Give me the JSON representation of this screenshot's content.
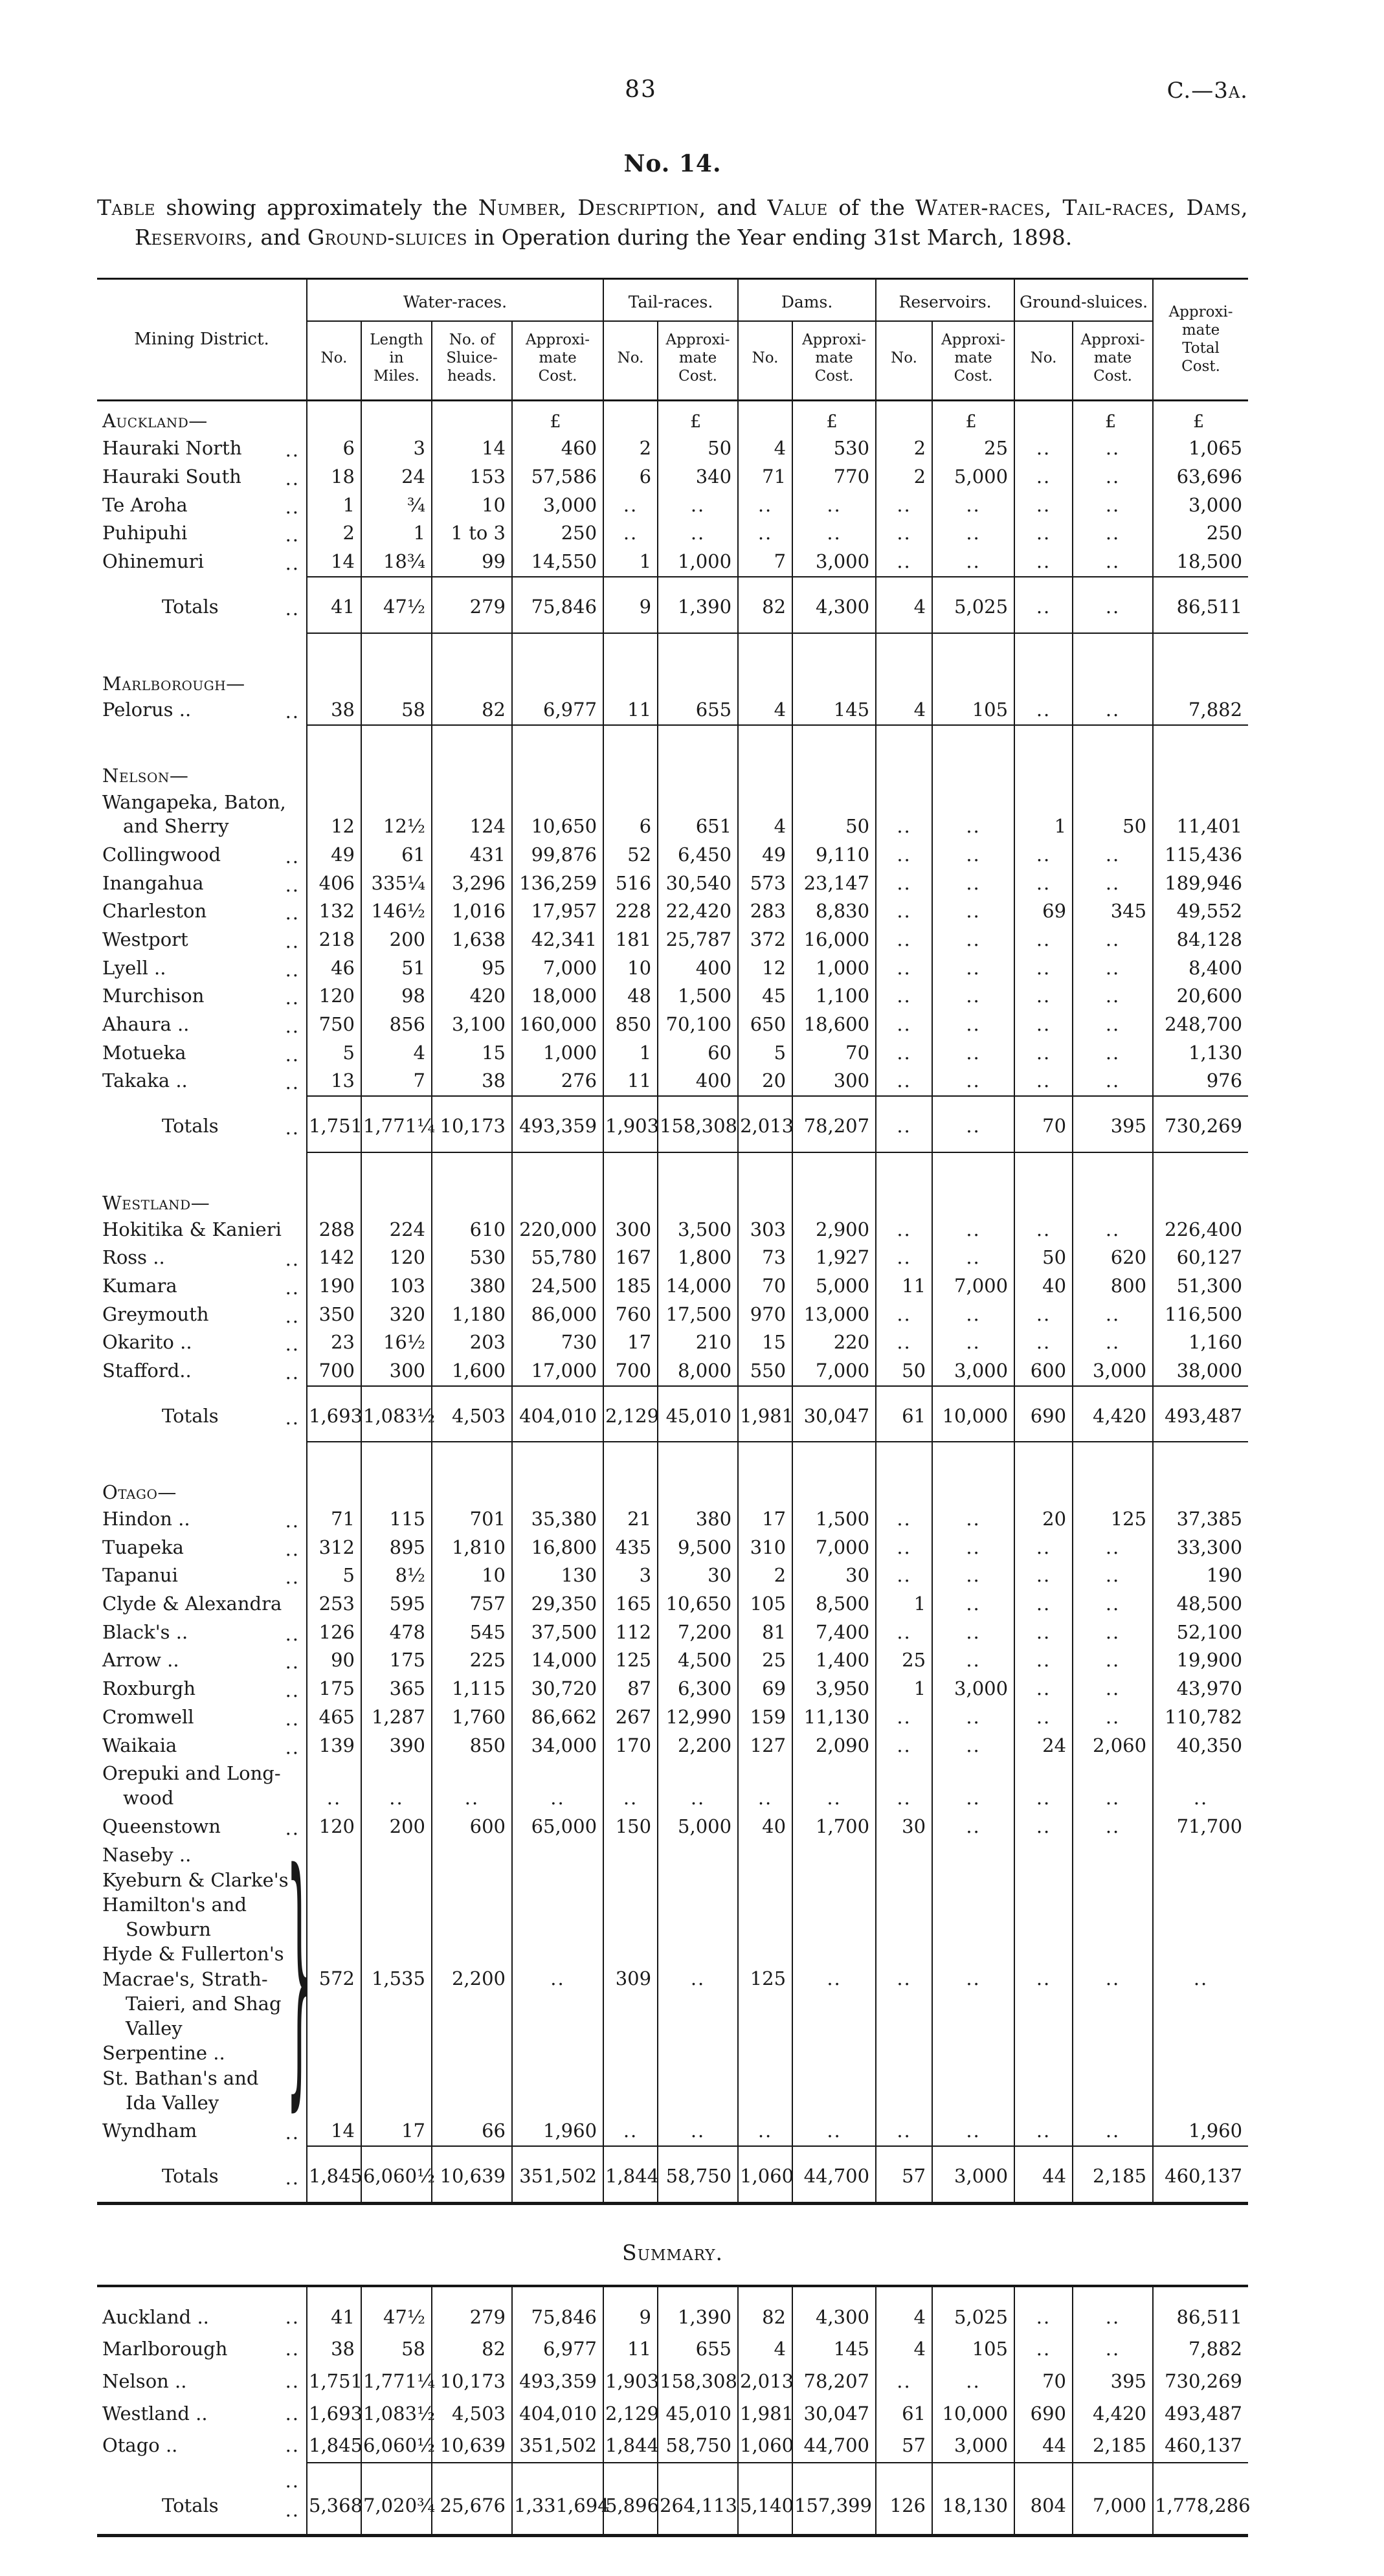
{
  "page": {
    "number": "83",
    "code": "C.—3a."
  },
  "heading": {
    "no": "No. 14."
  },
  "caption": {
    "p1": "Table",
    "p2": " showing approximately the ",
    "p3": "Number, Description,",
    "p4": " and ",
    "p5": "Value",
    "p6": " of the ",
    "p7": "Water-races, Tail-races, Dams, Reservoirs,",
    "p8": " and ",
    "p9": "Ground-sluices",
    "p10": " in Operation during the Year ending 31st March, 1898."
  },
  "table": {
    "pound": "£",
    "head": {
      "district": "Mining District.",
      "groups": [
        "Water-races.",
        "Tail-races.",
        "Dams.",
        "Reservoirs.",
        "Ground-sluices."
      ],
      "subs": [
        "No.",
        "Length\nin\nMiles.",
        "No. of\nSluice-\nheads.",
        "Approxi-\nmate\nCost.",
        "No.",
        "Approxi-\nmate\nCost.",
        "No.",
        "Approxi-\nmate\nCost.",
        "No.",
        "Approxi-\nmate\nCost.",
        "No.",
        "Approxi-\nmate\nCost."
      ],
      "total": "Approxi-\nmate\nTotal\nCost."
    },
    "sections": [
      {
        "name": "Auckland—",
        "pound": true,
        "rows": [
          {
            "d": "Hauraki North",
            "ld": "..",
            "v": [
              "6",
              "3",
              "14",
              "460",
              "2",
              "50",
              "4",
              "530",
              "2",
              "25",
              "..",
              "..",
              "1,065"
            ]
          },
          {
            "d": "Hauraki South",
            "ld": "..",
            "v": [
              "18",
              "24",
              "153",
              "57,586",
              "6",
              "340",
              "71",
              "770",
              "2",
              "5,000",
              "..",
              "..",
              "63,696"
            ]
          },
          {
            "d": "Te Aroha",
            "ld": "..",
            "v": [
              "1",
              "¾",
              "10",
              "3,000",
              "..",
              "..",
              "..",
              "..",
              "..",
              "..",
              "..",
              "..",
              "3,000"
            ]
          },
          {
            "d": "Puhipuhi",
            "ld": "..",
            "v": [
              "2",
              "1",
              "1 to 3",
              "250",
              "..",
              "..",
              "..",
              "..",
              "..",
              "..",
              "..",
              "..",
              "250"
            ]
          },
          {
            "d": "Ohinemuri",
            "ld": "..",
            "v": [
              "14",
              "18¾",
              "99",
              "14,550",
              "1",
              "1,000",
              "7",
              "3,000",
              "..",
              "..",
              "..",
              "..",
              "18,500"
            ]
          }
        ],
        "totals": {
          "label": "Totals",
          "ld": "..",
          "v": [
            "41",
            "47½",
            "279",
            "75,846",
            "9",
            "1,390",
            "82",
            "4,300",
            "4",
            "5,025",
            "..",
            "..",
            "86,511"
          ]
        }
      },
      {
        "name": "Marlborough—",
        "rows": [
          {
            "d": "Pelorus ..",
            "ld": "..",
            "v": [
              "38",
              "58",
              "82",
              "6,977",
              "11",
              "655",
              "4",
              "145",
              "4",
              "105",
              "..",
              "..",
              "7,882"
            ]
          }
        ]
      },
      {
        "name": "Nelson—",
        "rows": [
          {
            "d": "Wangapeka, Baton,\nand Sherry",
            "ld": "",
            "v": [
              "12",
              "12½",
              "124",
              "10,650",
              "6",
              "651",
              "4",
              "50",
              "..",
              "..",
              "1",
              "50",
              "11,401"
            ]
          },
          {
            "d": "Collingwood",
            "ld": "..",
            "v": [
              "49",
              "61",
              "431",
              "99,876",
              "52",
              "6,450",
              "49",
              "9,110",
              "..",
              "..",
              "..",
              "..",
              "115,436"
            ]
          },
          {
            "d": "Inangahua",
            "ld": "..",
            "v": [
              "406",
              "335¼",
              "3,296",
              "136,259",
              "516",
              "30,540",
              "573",
              "23,147",
              "..",
              "..",
              "..",
              "..",
              "189,946"
            ]
          },
          {
            "d": "Charleston",
            "ld": "..",
            "v": [
              "132",
              "146½",
              "1,016",
              "17,957",
              "228",
              "22,420",
              "283",
              "8,830",
              "..",
              "..",
              "69",
              "345",
              "49,552"
            ]
          },
          {
            "d": "Westport",
            "ld": "..",
            "v": [
              "218",
              "200",
              "1,638",
              "42,341",
              "181",
              "25,787",
              "372",
              "16,000",
              "..",
              "..",
              "..",
              "..",
              "84,128"
            ]
          },
          {
            "d": "Lyell ..",
            "ld": "..",
            "v": [
              "46",
              "51",
              "95",
              "7,000",
              "10",
              "400",
              "12",
              "1,000",
              "..",
              "..",
              "..",
              "..",
              "8,400"
            ]
          },
          {
            "d": "Murchison",
            "ld": "..",
            "v": [
              "120",
              "98",
              "420",
              "18,000",
              "48",
              "1,500",
              "45",
              "1,100",
              "..",
              "..",
              "..",
              "..",
              "20,600"
            ]
          },
          {
            "d": "Ahaura ..",
            "ld": "..",
            "v": [
              "750",
              "856",
              "3,100",
              "160,000",
              "850",
              "70,100",
              "650",
              "18,600",
              "..",
              "..",
              "..",
              "..",
              "248,700"
            ]
          },
          {
            "d": "Motueka",
            "ld": "..",
            "v": [
              "5",
              "4",
              "15",
              "1,000",
              "1",
              "60",
              "5",
              "70",
              "..",
              "..",
              "..",
              "..",
              "1,130"
            ]
          },
          {
            "d": "Takaka ..",
            "ld": "..",
            "v": [
              "13",
              "7",
              "38",
              "276",
              "11",
              "400",
              "20",
              "300",
              "..",
              "..",
              "..",
              "..",
              "976"
            ]
          }
        ],
        "totals": {
          "label": "Totals",
          "ld": "..",
          "v": [
            "1,751",
            "1,771¼",
            "10,173",
            "493,359",
            "1,903",
            "158,308",
            "2,013",
            "78,207",
            "..",
            "..",
            "70",
            "395",
            "730,269"
          ]
        }
      },
      {
        "name": "Westland—",
        "rows": [
          {
            "d": "Hokitika & Kanieri",
            "ld": "",
            "v": [
              "288",
              "224",
              "610",
              "220,000",
              "300",
              "3,500",
              "303",
              "2,900",
              "..",
              "..",
              "..",
              "..",
              "226,400"
            ]
          },
          {
            "d": "Ross ..",
            "ld": "..",
            "v": [
              "142",
              "120",
              "530",
              "55,780",
              "167",
              "1,800",
              "73",
              "1,927",
              "..",
              "..",
              "50",
              "620",
              "60,127"
            ]
          },
          {
            "d": "Kumara",
            "ld": "..",
            "v": [
              "190",
              "103",
              "380",
              "24,500",
              "185",
              "14,000",
              "70",
              "5,000",
              "11",
              "7,000",
              "40",
              "800",
              "51,300"
            ]
          },
          {
            "d": "Greymouth",
            "ld": "..",
            "v": [
              "350",
              "320",
              "1,180",
              "86,000",
              "760",
              "17,500",
              "970",
              "13,000",
              "..",
              "..",
              "..",
              "..",
              "116,500"
            ]
          },
          {
            "d": "Okarito ..",
            "ld": "..",
            "v": [
              "23",
              "16½",
              "203",
              "730",
              "17",
              "210",
              "15",
              "220",
              "..",
              "..",
              "..",
              "..",
              "1,160"
            ]
          },
          {
            "d": "Stafford..",
            "ld": "..",
            "v": [
              "700",
              "300",
              "1,600",
              "17,000",
              "700",
              "8,000",
              "550",
              "7,000",
              "50",
              "3,000",
              "600",
              "3,000",
              "38,000"
            ]
          }
        ],
        "totals": {
          "label": "Totals",
          "ld": "..",
          "v": [
            "1,693",
            "1,083½",
            "4,503",
            "404,010",
            "2,129",
            "45,010",
            "1,981",
            "30,047",
            "61",
            "10,000",
            "690",
            "4,420",
            "493,487"
          ]
        }
      },
      {
        "name": "Otago—",
        "rows": [
          {
            "d": "Hindon ..",
            "ld": "..",
            "v": [
              "71",
              "115",
              "701",
              "35,380",
              "21",
              "380",
              "17",
              "1,500",
              "..",
              "..",
              "20",
              "125",
              "37,385"
            ]
          },
          {
            "d": "Tuapeka",
            "ld": "..",
            "v": [
              "312",
              "895",
              "1,810",
              "16,800",
              "435",
              "9,500",
              "310",
              "7,000",
              "..",
              "..",
              "..",
              "..",
              "33,300"
            ]
          },
          {
            "d": "Tapanui",
            "ld": "..",
            "v": [
              "5",
              "8½",
              "10",
              "130",
              "3",
              "30",
              "2",
              "30",
              "..",
              "..",
              "..",
              "..",
              "190"
            ]
          },
          {
            "d": "Clyde & Alexandra",
            "ld": "",
            "v": [
              "253",
              "595",
              "757",
              "29,350",
              "165",
              "10,650",
              "105",
              "8,500",
              "1",
              "..",
              "..",
              "..",
              "48,500"
            ]
          },
          {
            "d": "Black's ..",
            "ld": "..",
            "v": [
              "126",
              "478",
              "545",
              "37,500",
              "112",
              "7,200",
              "81",
              "7,400",
              "..",
              "..",
              "..",
              "..",
              "52,100"
            ]
          },
          {
            "d": "Arrow ..",
            "ld": "..",
            "v": [
              "90",
              "175",
              "225",
              "14,000",
              "125",
              "4,500",
              "25",
              "1,400",
              "25",
              "..",
              "..",
              "..",
              "19,900"
            ]
          },
          {
            "d": "Roxburgh",
            "ld": "..",
            "v": [
              "175",
              "365",
              "1,115",
              "30,720",
              "87",
              "6,300",
              "69",
              "3,950",
              "1",
              "3,000",
              "..",
              "..",
              "43,970"
            ]
          },
          {
            "d": "Cromwell",
            "ld": "..",
            "v": [
              "465",
              "1,287",
              "1,760",
              "86,662",
              "267",
              "12,990",
              "159",
              "11,130",
              "..",
              "..",
              "..",
              "..",
              "110,782"
            ]
          },
          {
            "d": "Waikaia",
            "ld": "..",
            "v": [
              "139",
              "390",
              "850",
              "34,000",
              "170",
              "2,200",
              "127",
              "2,090",
              "..",
              "..",
              "24",
              "2,060",
              "40,350"
            ]
          },
          {
            "d": "Orepuki and Long-\nwood",
            "ld": "",
            "v": [
              "..",
              "..",
              "..",
              "..",
              "..",
              "..",
              "..",
              "..",
              "..",
              "..",
              "..",
              "..",
              ".."
            ]
          },
          {
            "d": "Queenstown",
            "ld": "..",
            "v": [
              "120",
              "200",
              "600",
              "65,000",
              "150",
              "5,000",
              "40",
              "1,700",
              "30",
              "..",
              "..",
              "..",
              "71,700"
            ]
          },
          {
            "group": true,
            "lines": [
              "Naseby ..",
              "Kyeburn & Clarke's",
              "Hamilton's and\nSowburn",
              "Hyde & Fullerton's",
              "Macrae's, Strath-\nTaieri, and Shag\nValley",
              "Serpentine ..",
              "St. Bathan's and\nIda Valley"
            ],
            "v": [
              "572",
              "1,535",
              "2,200",
              "..",
              "309",
              "..",
              "125",
              "..",
              "..",
              "..",
              "..",
              "..",
              ".."
            ]
          },
          {
            "d": "Wyndham",
            "ld": "..",
            "v": [
              "14",
              "17",
              "66",
              "1,960",
              "..",
              "..",
              "..",
              "..",
              "..",
              "..",
              "..",
              "..",
              "1,960"
            ]
          }
        ],
        "totals": {
          "label": "Totals",
          "ld": "..",
          "v": [
            "1,845",
            "6,060½",
            "10,639",
            "351,502",
            "1,844",
            "58,750",
            "1,060",
            "44,700",
            "57",
            "3,000",
            "44",
            "2,185",
            "460,137"
          ]
        }
      }
    ]
  },
  "summary": {
    "title": "Summary.",
    "rows": [
      {
        "d": "Auckland ..",
        "ld": "..",
        "v": [
          "41",
          "47½",
          "279",
          "75,846",
          "9",
          "1,390",
          "82",
          "4,300",
          "4",
          "5,025",
          "..",
          "..",
          "86,511"
        ]
      },
      {
        "d": "Marlborough",
        "ld": "..",
        "v": [
          "38",
          "58",
          "82",
          "6,977",
          "11",
          "655",
          "4",
          "145",
          "4",
          "105",
          "..",
          "..",
          "7,882"
        ]
      },
      {
        "d": "Nelson ..",
        "ld": "..",
        "v": [
          "1,751",
          "1,771¼",
          "10,173",
          "493,359",
          "1,903",
          "158,308",
          "2,013",
          "78,207",
          "..",
          "..",
          "70",
          "395",
          "730,269"
        ]
      },
      {
        "d": "Westland ..",
        "ld": "..",
        "v": [
          "1,693",
          "1,083½",
          "4,503",
          "404,010",
          "2,129",
          "45,010",
          "1,981",
          "30,047",
          "61",
          "10,000",
          "690",
          "4,420",
          "493,487"
        ]
      },
      {
        "d": "Otago ..",
        "ld": "..",
        "v": [
          "1,845",
          "6,060½",
          "10,639",
          "351,502",
          "1,844",
          "58,750",
          "1,060",
          "44,700",
          "57",
          "3,000",
          "44",
          "2,185",
          "460,137"
        ]
      }
    ],
    "pre_totals_leader": "..",
    "totals": {
      "label": "Totals",
      "ld": "..",
      "v": [
        "5,368",
        "7,020¾",
        "25,676",
        "1,331,694",
        "5,896",
        "264,113",
        "5,140",
        "157,399",
        "126",
        "18,130",
        "804",
        "7,000",
        "1,778,286"
      ]
    }
  }
}
